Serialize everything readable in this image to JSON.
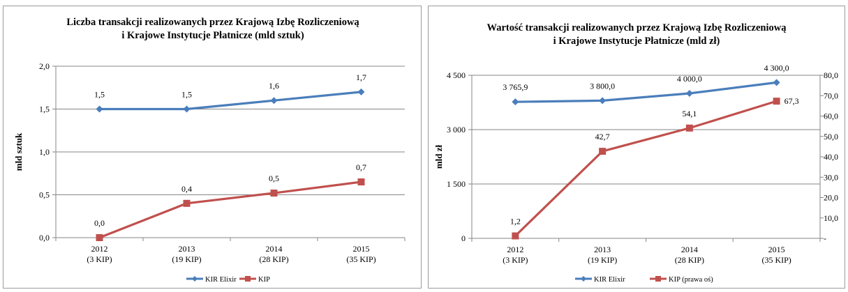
{
  "chart_data": [
    {
      "type": "line",
      "title_lines": [
        "Liczba transakcji realizowanych przez Krajową Izbę Rozliczeniową",
        "i Krajowe Instytucje Płatnicze (mld sztuk)"
      ],
      "ylabel": "mld sztuk",
      "categories": [
        [
          "2012",
          "(3 KIP)"
        ],
        [
          "2013",
          "(19 KIP)"
        ],
        [
          "2014",
          "(28 KIP)"
        ],
        [
          "2015",
          "(35 KIP)"
        ]
      ],
      "ylim": [
        0,
        2.0
      ],
      "yticks": [
        0,
        0.5,
        1.0,
        1.5,
        2.0
      ],
      "ytick_labels": [
        "0,0",
        "0,5",
        "1,0",
        "1,5",
        "2,0"
      ],
      "grid": true,
      "legend_position": "bottom",
      "series": [
        {
          "name": "KIR Elixir",
          "color": "#4a7ebb",
          "marker": "diamond",
          "axis": "left",
          "values": [
            1.5,
            1.5,
            1.6,
            1.7
          ],
          "labels": [
            "1,5",
            "1,5",
            "1,6",
            "1,7"
          ]
        },
        {
          "name": "KIP",
          "color": "#c0504d",
          "marker": "square",
          "axis": "left",
          "values": [
            0.0,
            0.4,
            0.52,
            0.65
          ],
          "labels": [
            "0,0",
            "0,4",
            "0,5",
            "0,7"
          ]
        }
      ]
    },
    {
      "type": "line",
      "title_lines": [
        "Wartość transakcji realizowanych przez Krajową Izbę Rozliczeniową",
        "i Krajowe Instytucje Płatnicze (mld zł)"
      ],
      "ylabel": "mld zł",
      "categories": [
        [
          "2012",
          "(3 KIP)"
        ],
        [
          "2013",
          "(19 KIP)"
        ],
        [
          "2014",
          "(28 KIP)"
        ],
        [
          "2015",
          "(35 KIP)"
        ]
      ],
      "ylim": [
        0,
        4500
      ],
      "yticks": [
        0,
        1500,
        3000,
        4500
      ],
      "ytick_labels": [
        "0",
        "1 500",
        "3 000",
        "4 500"
      ],
      "y2lim": [
        0,
        80
      ],
      "y2ticks": [
        0,
        10,
        20,
        30,
        40,
        50,
        60,
        70,
        80
      ],
      "y2tick_labels": [
        "-",
        "10,0",
        "20,0",
        "30,0",
        "40,0",
        "50,0",
        "60,0",
        "70,0",
        "80,0"
      ],
      "grid": true,
      "legend_position": "bottom",
      "series": [
        {
          "name": "KIR Elixir",
          "color": "#4a7ebb",
          "marker": "diamond",
          "axis": "left",
          "values": [
            3765.9,
            3800.0,
            4000.0,
            4300.0
          ],
          "labels": [
            "3 765,9",
            "3 800,0",
            "4 000,0",
            "4 300,0"
          ]
        },
        {
          "name": "KIP (prawa oś)",
          "color": "#c0504d",
          "marker": "square",
          "axis": "right",
          "values": [
            1.2,
            42.7,
            54.1,
            67.3
          ],
          "labels": [
            "1,2",
            "42,7",
            "54,1",
            "67,3"
          ]
        }
      ]
    }
  ]
}
